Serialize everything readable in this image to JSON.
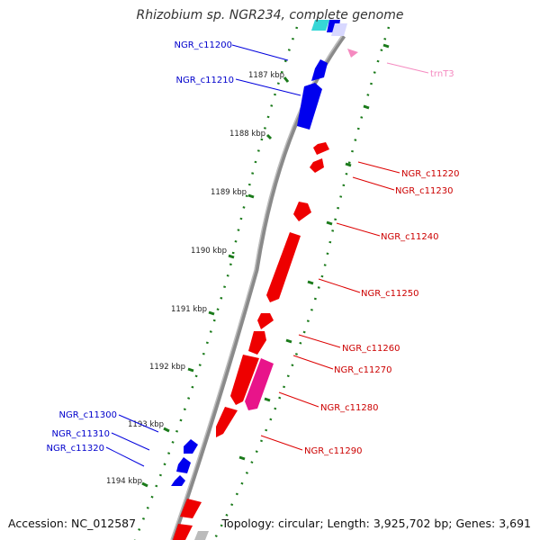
{
  "title": "Rhizobium sp. NGR234, complete genome",
  "footer": {
    "accession_label": "Accession:",
    "accession": "NC_012587",
    "topology_label": "Topology:",
    "topology": "circular",
    "length_label": "Length:",
    "length": "3,925,702 bp",
    "genes_label": "Genes:",
    "genes": "3,691"
  },
  "colors": {
    "backbone": "#888888",
    "ticks": "#1a7a1a",
    "forward_gene": "#0000ee",
    "reverse_gene": "#ee0000",
    "pseudo_gene": "#ee1a8a",
    "trna": "#f5a3c7",
    "cyan_feature": "#35d6d6",
    "gray_feature": "#bbbbbb"
  },
  "ticks": [
    {
      "label": "1187 kbp"
    },
    {
      "label": "1188 kbp"
    },
    {
      "label": "1189 kbp"
    },
    {
      "label": "1190 kbp"
    },
    {
      "label": "1191 kbp"
    },
    {
      "label": "1192 kbp"
    },
    {
      "label": "1193 kbp"
    },
    {
      "label": "1194 kbp"
    }
  ],
  "gene_labels": [
    {
      "name": "NGR_c11200",
      "strand": "forward"
    },
    {
      "name": "NGR_c11210",
      "strand": "forward"
    },
    {
      "name": "trnT3",
      "strand": "trna"
    },
    {
      "name": "NGR_c11220",
      "strand": "reverse"
    },
    {
      "name": "NGR_c11230",
      "strand": "reverse"
    },
    {
      "name": "NGR_c11240",
      "strand": "reverse"
    },
    {
      "name": "NGR_c11250",
      "strand": "reverse"
    },
    {
      "name": "NGR_c11260",
      "strand": "reverse"
    },
    {
      "name": "NGR_c11270",
      "strand": "reverse"
    },
    {
      "name": "NGR_c11280",
      "strand": "reverse"
    },
    {
      "name": "NGR_c11290",
      "strand": "reverse"
    },
    {
      "name": "NGR_c11300",
      "strand": "forward"
    },
    {
      "name": "NGR_c11310",
      "strand": "forward"
    },
    {
      "name": "NGR_c11320",
      "strand": "forward"
    }
  ]
}
